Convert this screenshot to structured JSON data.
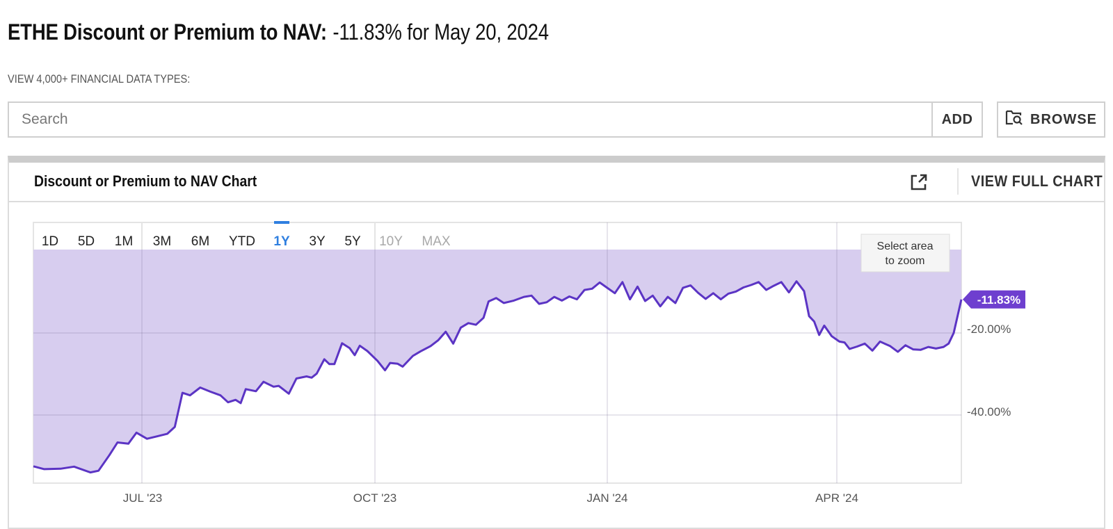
{
  "header": {
    "title_bold": "ETHE Discount or Premium to NAV:",
    "title_value": "-11.83% for May 20, 2024"
  },
  "search": {
    "section_label": "VIEW 4,000+ FINANCIAL DATA TYPES:",
    "placeholder": "Search",
    "value": "",
    "add_label": "ADD",
    "browse_label": "BROWSE",
    "browse_icon": "folder-search-icon"
  },
  "card": {
    "title": "Discount or Premium to NAV Chart",
    "external_icon": "external-link-icon",
    "view_full_chart_label": "VIEW FULL CHART"
  },
  "range_buttons": [
    {
      "label": "1D",
      "state": "normal"
    },
    {
      "label": "5D",
      "state": "normal"
    },
    {
      "label": "1M",
      "state": "normal"
    },
    {
      "label": "3M",
      "state": "normal"
    },
    {
      "label": "6M",
      "state": "normal"
    },
    {
      "label": "YTD",
      "state": "normal"
    },
    {
      "label": "1Y",
      "state": "active"
    },
    {
      "label": "3Y",
      "state": "normal"
    },
    {
      "label": "5Y",
      "state": "normal"
    },
    {
      "label": "10Y",
      "state": "disabled"
    },
    {
      "label": "MAX",
      "state": "disabled"
    }
  ],
  "zoom_hint": {
    "line1": "Select area",
    "line2": "to zoom"
  },
  "colors": {
    "line": "#5b34c4",
    "fill": "#d7cdef",
    "active_range": "#2f7fe0",
    "disabled_range": "#a8a8a8",
    "callout_bg": "#6e3fcf",
    "grid": "#e4e4e4"
  },
  "chart_data": {
    "type": "area",
    "title": "Discount or Premium to NAV Chart",
    "series": [
      {
        "name": "ETHE Discount or Premium to NAV",
        "last_value_label": "-11.83%",
        "points": [
          [
            "2023-05-22",
            -52.5
          ],
          [
            "2023-05-26",
            -53.2
          ],
          [
            "2023-06-01",
            -53.1
          ],
          [
            "2023-06-06",
            -52.6
          ],
          [
            "2023-06-12",
            -54.0
          ],
          [
            "2023-06-15",
            -53.6
          ],
          [
            "2023-06-19",
            -49.8
          ],
          [
            "2023-06-22",
            -46.7
          ],
          [
            "2023-06-26",
            -47.0
          ],
          [
            "2023-06-29",
            -44.3
          ],
          [
            "2023-07-03",
            -45.8
          ],
          [
            "2023-07-07",
            -45.2
          ],
          [
            "2023-07-11",
            -44.6
          ],
          [
            "2023-07-14",
            -42.9
          ],
          [
            "2023-07-17",
            -34.6
          ],
          [
            "2023-07-20",
            -35.2
          ],
          [
            "2023-07-24",
            -33.3
          ],
          [
            "2023-07-28",
            -34.3
          ],
          [
            "2023-08-01",
            -35.2
          ],
          [
            "2023-08-04",
            -36.9
          ],
          [
            "2023-08-07",
            -36.3
          ],
          [
            "2023-08-09",
            -37.1
          ],
          [
            "2023-08-11",
            -33.7
          ],
          [
            "2023-08-15",
            -34.2
          ],
          [
            "2023-08-18",
            -31.9
          ],
          [
            "2023-08-22",
            -33.1
          ],
          [
            "2023-08-24",
            -32.9
          ],
          [
            "2023-08-28",
            -34.8
          ],
          [
            "2023-08-31",
            -31.1
          ],
          [
            "2023-09-04",
            -30.6
          ],
          [
            "2023-09-06",
            -30.9
          ],
          [
            "2023-09-08",
            -29.9
          ],
          [
            "2023-09-11",
            -26.4
          ],
          [
            "2023-09-13",
            -27.6
          ],
          [
            "2023-09-15",
            -27.6
          ],
          [
            "2023-09-18",
            -22.5
          ],
          [
            "2023-09-21",
            -23.7
          ],
          [
            "2023-09-23",
            -25.4
          ],
          [
            "2023-09-25",
            -23.1
          ],
          [
            "2023-09-28",
            -24.4
          ],
          [
            "2023-10-02",
            -26.8
          ],
          [
            "2023-10-05",
            -29.1
          ],
          [
            "2023-10-07",
            -27.3
          ],
          [
            "2023-10-10",
            -27.5
          ],
          [
            "2023-10-12",
            -28.2
          ],
          [
            "2023-10-16",
            -25.6
          ],
          [
            "2023-10-19",
            -24.5
          ],
          [
            "2023-10-23",
            -23.2
          ],
          [
            "2023-10-26",
            -21.8
          ],
          [
            "2023-10-29",
            -19.7
          ],
          [
            "2023-11-01",
            -22.6
          ],
          [
            "2023-11-04",
            -18.7
          ],
          [
            "2023-11-07",
            -17.6
          ],
          [
            "2023-11-10",
            -18.0
          ],
          [
            "2023-11-13",
            -16.3
          ],
          [
            "2023-11-15",
            -12.3
          ],
          [
            "2023-11-18",
            -11.5
          ],
          [
            "2023-11-21",
            -12.7
          ],
          [
            "2023-11-25",
            -12.1
          ],
          [
            "2023-11-29",
            -11.2
          ],
          [
            "2023-12-02",
            -10.9
          ],
          [
            "2023-12-05",
            -12.9
          ],
          [
            "2023-12-08",
            -12.5
          ],
          [
            "2023-12-11",
            -11.2
          ],
          [
            "2023-12-14",
            -12.1
          ],
          [
            "2023-12-17",
            -11.1
          ],
          [
            "2023-12-20",
            -11.8
          ],
          [
            "2023-12-23",
            -9.5
          ],
          [
            "2023-12-26",
            -9.2
          ],
          [
            "2023-12-29",
            -7.7
          ],
          [
            "2024-01-01",
            -9.0
          ],
          [
            "2024-01-04",
            -10.3
          ],
          [
            "2024-01-07",
            -7.6
          ],
          [
            "2024-01-10",
            -11.8
          ],
          [
            "2024-01-13",
            -8.7
          ],
          [
            "2024-01-16",
            -12.2
          ],
          [
            "2024-01-19",
            -10.9
          ],
          [
            "2024-01-22",
            -13.5
          ],
          [
            "2024-01-25",
            -11.2
          ],
          [
            "2024-01-28",
            -12.7
          ],
          [
            "2024-01-31",
            -9.0
          ],
          [
            "2024-02-03",
            -8.4
          ],
          [
            "2024-02-06",
            -10.2
          ],
          [
            "2024-02-09",
            -11.7
          ],
          [
            "2024-02-12",
            -10.3
          ],
          [
            "2024-02-15",
            -11.8
          ],
          [
            "2024-02-18",
            -10.4
          ],
          [
            "2024-02-21",
            -9.9
          ],
          [
            "2024-02-24",
            -8.9
          ],
          [
            "2024-02-27",
            -8.3
          ],
          [
            "2024-03-01",
            -7.6
          ],
          [
            "2024-03-04",
            -9.5
          ],
          [
            "2024-03-07",
            -8.5
          ],
          [
            "2024-03-10",
            -7.6
          ],
          [
            "2024-03-13",
            -10.1
          ],
          [
            "2024-03-16",
            -7.4
          ],
          [
            "2024-03-19",
            -9.8
          ],
          [
            "2024-03-21",
            -15.9
          ],
          [
            "2024-03-23",
            -17.2
          ],
          [
            "2024-03-25",
            -20.5
          ],
          [
            "2024-03-27",
            -18.2
          ],
          [
            "2024-03-30",
            -20.8
          ],
          [
            "2024-04-02",
            -22.1
          ],
          [
            "2024-04-04",
            -22.3
          ],
          [
            "2024-04-06",
            -23.9
          ],
          [
            "2024-04-09",
            -23.3
          ],
          [
            "2024-04-12",
            -22.6
          ],
          [
            "2024-04-15",
            -24.3
          ],
          [
            "2024-04-18",
            -22.1
          ],
          [
            "2024-04-22",
            -23.2
          ],
          [
            "2024-04-25",
            -24.6
          ],
          [
            "2024-04-28",
            -23.0
          ],
          [
            "2024-05-01",
            -24.0
          ],
          [
            "2024-05-04",
            -24.1
          ],
          [
            "2024-05-07",
            -23.4
          ],
          [
            "2024-05-10",
            -23.8
          ],
          [
            "2024-05-13",
            -23.4
          ],
          [
            "2024-05-15",
            -22.6
          ],
          [
            "2024-05-17",
            -20.0
          ],
          [
            "2024-05-20",
            -11.83
          ]
        ]
      }
    ],
    "xlabel": "",
    "ylabel": "",
    "x_tick_labels": [
      "JUL '23",
      "OCT '23",
      "JAN '24",
      "APR '24"
    ],
    "y_tick_labels": [
      "-20.00%",
      "-40.00%"
    ],
    "ylim": [
      -56,
      2
    ],
    "grid": true,
    "legend": "none",
    "selected_range": "1Y",
    "annotations": [
      "-11.83% (last value callout)",
      "Select area to zoom"
    ]
  }
}
